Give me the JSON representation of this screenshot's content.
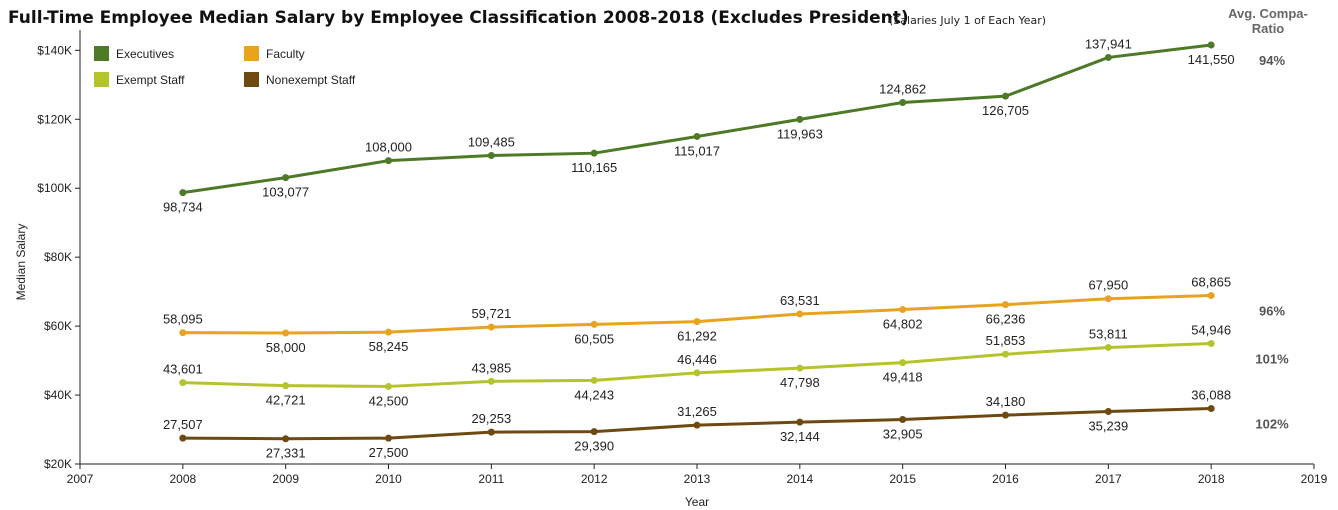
{
  "header": {
    "title": "Full-Time Employee Median Salary by Employee Classification 2008-2018 (Excludes President)",
    "subtitle": "(Salaries July 1 of Each Year)",
    "compa_header": "Avg. Compa-Ratio"
  },
  "chart_data": {
    "type": "line",
    "xlabel": "Year",
    "ylabel": "Median Salary",
    "x_ticks": [
      "2007",
      "2008",
      "2009",
      "2010",
      "2011",
      "2012",
      "2013",
      "2014",
      "2015",
      "2016",
      "2017",
      "2018",
      "2019"
    ],
    "y_ticks": [
      "$20K",
      "$40K",
      "$60K",
      "$80K",
      "$100K",
      "$120K",
      "$140K"
    ],
    "xlim": [
      2007,
      2019
    ],
    "ylim": [
      20000,
      143000
    ],
    "grid": false,
    "legend_position": "top-left",
    "x": [
      2008,
      2009,
      2010,
      2011,
      2012,
      2013,
      2014,
      2015,
      2016,
      2017,
      2018
    ],
    "series": [
      {
        "name": "Executives",
        "color": "#4e7a27",
        "values": [
          98734,
          103077,
          108000,
          109485,
          110165,
          115017,
          119963,
          124862,
          126705,
          137941,
          141550
        ],
        "labels": [
          "98,734",
          "103,077",
          "108,000",
          "109,485",
          "110,165",
          "115,017",
          "119,963",
          "124,862",
          "126,705",
          "137,941",
          "141,550"
        ],
        "label_pos": [
          "below",
          "below",
          "above",
          "above",
          "below",
          "below",
          "below",
          "above",
          "below",
          "above",
          "below"
        ],
        "compa_ratio": "94%"
      },
      {
        "name": "Faculty",
        "color": "#e8a321",
        "values": [
          58095,
          58000,
          58245,
          59721,
          60505,
          61292,
          63531,
          64802,
          66236,
          67950,
          68865
        ],
        "labels": [
          "58,095",
          "58,000",
          "58,245",
          "59,721",
          "60,505",
          "61,292",
          "63,531",
          "64,802",
          "66,236",
          "67,950",
          "68,865"
        ],
        "label_pos": [
          "above",
          "below",
          "below",
          "above",
          "below",
          "below",
          "above",
          "below",
          "below",
          "above",
          "above"
        ],
        "compa_ratio": "96%"
      },
      {
        "name": "Exempt Staff",
        "color": "#b5c42d",
        "values": [
          43601,
          42721,
          42500,
          43985,
          44243,
          46446,
          47798,
          49418,
          51853,
          53811,
          54946
        ],
        "labels": [
          "43,601",
          "42,721",
          "42,500",
          "43,985",
          "44,243",
          "46,446",
          "47,798",
          "49,418",
          "51,853",
          "53,811",
          "54,946"
        ],
        "label_pos": [
          "above",
          "below",
          "below",
          "above",
          "below",
          "above",
          "below",
          "below",
          "above",
          "above",
          "above"
        ],
        "compa_ratio": "101%"
      },
      {
        "name": "Nonexempt Staff",
        "color": "#6e4a12",
        "values": [
          27507,
          27331,
          27500,
          29253,
          29390,
          31265,
          32144,
          32905,
          34180,
          35239,
          36088
        ],
        "labels": [
          "27,507",
          "27,331",
          "27,500",
          "29,253",
          "29,390",
          "31,265",
          "32,144",
          "32,905",
          "34,180",
          "35,239",
          "36,088"
        ],
        "label_pos": [
          "above",
          "below",
          "below",
          "above",
          "below",
          "above",
          "below",
          "below",
          "above",
          "below",
          "above"
        ],
        "compa_ratio": "102%"
      }
    ]
  }
}
